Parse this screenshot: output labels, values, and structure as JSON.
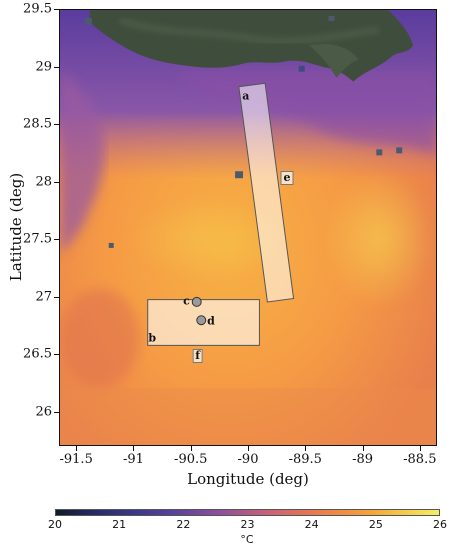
{
  "map": {
    "xlabel": "Longitude (deg)",
    "ylabel": "Latitude (deg)",
    "x_ticks": [
      "-91.5",
      "-91",
      "-90.5",
      "-90",
      "-89.5",
      "-89",
      "-88.5"
    ],
    "x_tick_values": [
      -91.5,
      -91,
      -90.5,
      -90,
      -89.5,
      -89,
      -88.5
    ],
    "y_ticks": [
      "29.5",
      "29",
      "28.5",
      "28",
      "27.5",
      "27",
      "26.5",
      "26"
    ],
    "y_tick_values": [
      29.5,
      29,
      28.5,
      28,
      27.5,
      27,
      26.5,
      26
    ],
    "xlim": [
      -91.65,
      -88.35
    ],
    "ylim": [
      25.7,
      29.5
    ],
    "layer": "sea-surface-temperature",
    "land_color": "#3b4a3a"
  },
  "regions": [
    {
      "id": "a",
      "label": "a",
      "shape": "strip",
      "corners_lonlat": [
        [
          -90.08,
          28.83
        ],
        [
          -89.85,
          28.86
        ],
        [
          -89.6,
          26.98
        ],
        [
          -89.83,
          26.95
        ]
      ]
    },
    {
      "id": "b",
      "label": "b",
      "shape": "box",
      "corners_lonlat": [
        [
          -90.88,
          26.97
        ],
        [
          -89.9,
          26.97
        ],
        [
          -89.9,
          26.57
        ],
        [
          -90.88,
          26.57
        ]
      ]
    }
  ],
  "points": [
    {
      "id": "c",
      "label": "c",
      "lon": -90.45,
      "lat": 26.95
    },
    {
      "id": "d",
      "label": "d",
      "lon": -90.41,
      "lat": 26.79
    }
  ],
  "boxed_labels": [
    {
      "id": "e",
      "label": "e",
      "lon": -89.66,
      "lat": 28.03
    },
    {
      "id": "f",
      "label": "f",
      "lon": -90.44,
      "lat": 26.48
    }
  ],
  "colorbar": {
    "ticks": [
      "20",
      "21",
      "22",
      "23",
      "24",
      "25",
      "26"
    ],
    "min": 20,
    "max": 26,
    "unit": "°C"
  }
}
